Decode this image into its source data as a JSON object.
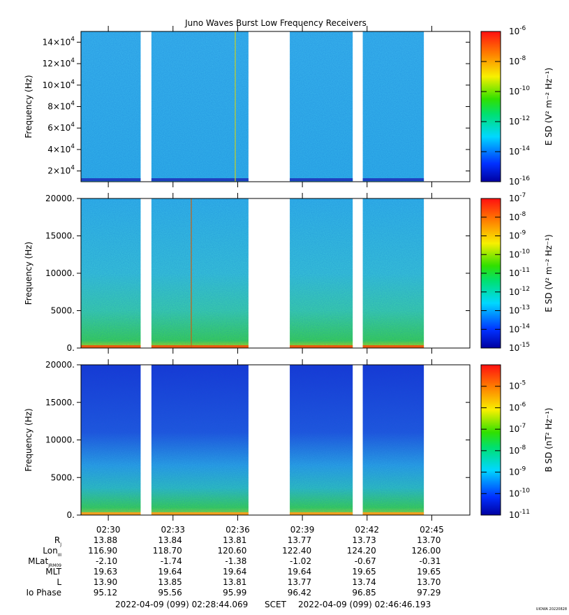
{
  "title": "Juno Waves Burst Low Frequency Receivers",
  "credit": "UIOWA 20220828",
  "time_axis": {
    "ticks": [
      "02:30",
      "02:33",
      "02:36",
      "02:39",
      "02:42",
      "02:45"
    ],
    "start_label": "2022-04-09 (099) 02:28:44.069",
    "frame_label": "SCET",
    "end_label": "2022-04-09 (099) 02:46:46.193"
  },
  "ephemeris": {
    "rows": [
      {
        "label": "R",
        "sub": "J",
        "values": [
          "13.88",
          "13.84",
          "13.81",
          "13.77",
          "13.73",
          "13.70"
        ]
      },
      {
        "label": "Lon",
        "sub": "III",
        "values": [
          "116.90",
          "118.70",
          "120.60",
          "122.40",
          "124.20",
          "126.00"
        ]
      },
      {
        "label": "MLat",
        "sub": "JRM09",
        "values": [
          "-2.10",
          "-1.74",
          "-1.38",
          "-1.02",
          "-0.67",
          "-0.31"
        ]
      },
      {
        "label": "MLT",
        "sub": "",
        "values": [
          "19.63",
          "19.64",
          "19.64",
          "19.64",
          "19.65",
          "19.65"
        ]
      },
      {
        "label": "L",
        "sub": "",
        "values": [
          "13.90",
          "13.85",
          "13.81",
          "13.77",
          "13.74",
          "13.70"
        ]
      },
      {
        "label": "Io Phase",
        "sub": "",
        "values": [
          "95.12",
          "95.56",
          "95.99",
          "96.42",
          "96.85",
          "97.29"
        ]
      }
    ]
  },
  "chart_data": [
    {
      "type": "heatmap",
      "panel": "top",
      "ylabel": "Frequency (Hz)",
      "ylim": [
        10000,
        150000
      ],
      "yticks": [
        {
          "v": 20000,
          "m": "2",
          "e": "4"
        },
        {
          "v": 40000,
          "m": "4",
          "e": "4"
        },
        {
          "v": 60000,
          "m": "6",
          "e": "4"
        },
        {
          "v": 80000,
          "m": "8",
          "e": "4"
        },
        {
          "v": 100000,
          "m": "10",
          "e": "4"
        },
        {
          "v": 120000,
          "m": "12",
          "e": "4"
        },
        {
          "v": 140000,
          "m": "14",
          "e": "4"
        }
      ],
      "colorbar": {
        "label_main": "E SD (V",
        "label_full": "E SD (V² m⁻² Hz⁻¹)",
        "range_exp": [
          -16,
          -6
        ],
        "ticks": [
          "-16",
          "-14",
          "-12",
          "-10",
          "-8",
          "-6"
        ]
      },
      "base_color": "#33b8ee",
      "bottom_band_color": "#1f3fbf"
    },
    {
      "type": "heatmap",
      "panel": "middle",
      "ylabel": "Frequency (Hz)",
      "ylim": [
        0,
        20000
      ],
      "yticks": [
        {
          "v": 0,
          "label": "0."
        },
        {
          "v": 5000,
          "label": "5000."
        },
        {
          "v": 10000,
          "label": "10000."
        },
        {
          "v": 15000,
          "label": "15000."
        },
        {
          "v": 20000,
          "label": "20000."
        }
      ],
      "colorbar": {
        "label_main": "E SD (V",
        "label_full": "E SD (V² m⁻² Hz⁻¹)",
        "range_exp": [
          -15,
          -7
        ],
        "ticks": [
          "-15",
          "-14",
          "-13",
          "-12",
          "-11",
          "-10",
          "-9",
          "-8",
          "-7"
        ]
      },
      "base_color": "#34c3e6",
      "low_color": "#3ed94e",
      "bottom_band_color": "#e85a10"
    },
    {
      "type": "heatmap",
      "panel": "bottom",
      "ylabel": "Frequency (Hz)",
      "ylim": [
        0,
        20000
      ],
      "yticks": [
        {
          "v": 0,
          "label": "0."
        },
        {
          "v": 5000,
          "label": "5000."
        },
        {
          "v": 10000,
          "label": "10000."
        },
        {
          "v": 15000,
          "label": "15000."
        },
        {
          "v": 20000,
          "label": "20000."
        }
      ],
      "colorbar": {
        "label_main": "B SD (nT",
        "label_full": "B SD (nT² Hz⁻¹)",
        "range_exp": [
          -11,
          -4
        ],
        "ticks": [
          "-11",
          "-10",
          "-9",
          "-8",
          "-7",
          "-6",
          "-5"
        ]
      },
      "base_color": "#1f3fdc",
      "low_color": "#3ed94e",
      "bottom_band_color": "#f0a020"
    }
  ],
  "data_segments": [
    {
      "start": "02:28:44",
      "end": "02:31:30"
    },
    {
      "start": "02:32:00",
      "end": "02:36:30"
    },
    {
      "start": "02:38:25",
      "end": "02:41:20"
    },
    {
      "start": "02:41:48",
      "end": "02:44:38"
    }
  ]
}
